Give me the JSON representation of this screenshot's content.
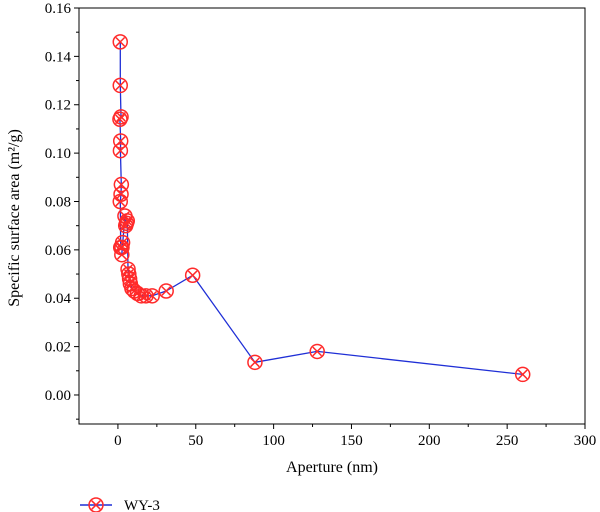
{
  "chart_data": {
    "type": "line",
    "xlabel": "Aperture (nm)",
    "ylabel": "Specific surface area (m²/g)",
    "xlim": [
      -25,
      300
    ],
    "ylim": [
      -0.012,
      0.16
    ],
    "xticks": [
      0,
      50,
      100,
      150,
      200,
      250,
      300
    ],
    "yticks": [
      0.0,
      0.02,
      0.04,
      0.06,
      0.08,
      0.1,
      0.12,
      0.14,
      0.16
    ],
    "xtick_labels": [
      "0",
      "50",
      "100",
      "150",
      "200",
      "250",
      "300"
    ],
    "ytick_labels": [
      "0.00",
      "0.02",
      "0.04",
      "0.06",
      "0.08",
      "0.10",
      "0.12",
      "0.14",
      "0.16"
    ],
    "grid": false,
    "legend_position": "bottom-left",
    "series": [
      {
        "name": "WY-3",
        "line_color": "#1f2fd6",
        "marker_color": "#ff2a2a",
        "marker": "circle-x",
        "x": [
          1.5,
          1.5,
          2.0,
          1.3,
          1.8,
          1.6,
          2.2,
          2.0,
          1.5,
          1.8,
          2.6,
          3.0,
          2.5,
          4.5,
          5.5,
          5.0,
          6.0,
          6.5,
          7.0,
          7.5,
          8.0,
          9.0,
          10.5,
          12.5,
          15.0,
          18.0,
          22.0,
          31.0,
          48.0,
          88.0,
          128.0,
          260.0
        ],
        "y": [
          0.146,
          0.128,
          0.115,
          0.114,
          0.105,
          0.101,
          0.087,
          0.083,
          0.08,
          0.061,
          0.061,
          0.063,
          0.058,
          0.074,
          0.071,
          0.07,
          0.072,
          0.052,
          0.05,
          0.048,
          0.046,
          0.044,
          0.043,
          0.042,
          0.041,
          0.041,
          0.041,
          0.043,
          0.0495,
          0.0135,
          0.018,
          0.0085
        ]
      }
    ]
  }
}
